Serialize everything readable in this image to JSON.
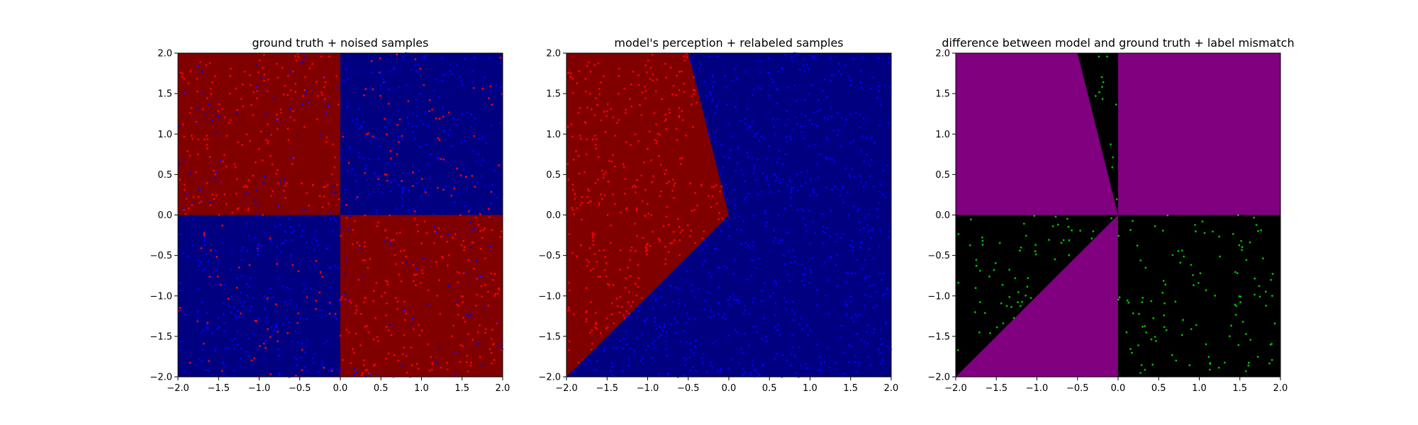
{
  "chart_data": [
    {
      "type": "scatter",
      "title": "ground truth + noised samples",
      "xlim": [
        -2.0,
        2.0
      ],
      "ylim": [
        -2.0,
        2.0
      ],
      "xticks": [
        "−2.0",
        "−1.5",
        "−1.0",
        "−0.5",
        "0.0",
        "0.5",
        "1.0",
        "1.5",
        "2.0"
      ],
      "yticks": [
        "−2.0",
        "−1.5",
        "−1.0",
        "−0.5",
        "0.0",
        "0.5",
        "1.0",
        "1.5",
        "2.0"
      ],
      "background_regions": [
        {
          "region": "x<0, y>0",
          "color": "#800000"
        },
        {
          "region": "x>0, y>0",
          "color": "#000080"
        },
        {
          "region": "x<0, y<0",
          "color": "#000080"
        },
        {
          "region": "x>0, y<0",
          "color": "#800000"
        }
      ],
      "samples": "uniform random points in [-2,2]x[-2,2], colored red or blue; ~25% disagree with their region (label noise)",
      "sample_colors": [
        "#ff0000",
        "#0000ff"
      ]
    },
    {
      "type": "scatter",
      "title": "model's perception + relabeled samples",
      "xlim": [
        -2.0,
        2.0
      ],
      "ylim": [
        -2.0,
        2.0
      ],
      "xticks": [
        "−2.0",
        "−1.5",
        "−1.0",
        "−0.5",
        "0.0",
        "0.5",
        "1.0",
        "1.5",
        "2.0"
      ],
      "yticks": [
        "−2.0",
        "−1.5",
        "−1.0",
        "−0.5",
        "0.0",
        "0.5",
        "1.0",
        "1.5",
        "2.0"
      ],
      "decision_boundary": [
        [
          -0.5,
          2.0
        ],
        [
          0.0,
          0.0
        ],
        [
          -2.0,
          -2.0
        ]
      ],
      "background_regions": [
        {
          "region": "wedge left of boundary",
          "color": "#800000"
        },
        {
          "region": "remaining area",
          "color": "#000080"
        }
      ],
      "samples": "points colored by model prediction: red inside the red wedge, blue elsewhere",
      "sample_colors": [
        "#ff0000",
        "#0000ff"
      ]
    },
    {
      "type": "scatter",
      "title": "difference between model and ground truth + label mismatch",
      "xlim": [
        -2.0,
        2.0
      ],
      "ylim": [
        -2.0,
        2.0
      ],
      "xticks": [
        "−2.0",
        "−1.5",
        "−1.0",
        "−0.5",
        "0.0",
        "0.5",
        "1.0",
        "1.5",
        "2.0"
      ],
      "yticks": [
        "−2.0",
        "−1.5",
        "−1.0",
        "−0.5",
        "0.0",
        "0.5",
        "1.0",
        "1.5",
        "2.0"
      ],
      "background_regions": [
        {
          "region": "model disagrees with ground truth",
          "color": "#800080"
        },
        {
          "region": "model agrees with ground truth",
          "color": "#000000"
        }
      ],
      "samples": "green points where the relabeled sample differs from the noised label",
      "sample_colors": [
        "#00c000"
      ]
    }
  ],
  "colors": {
    "dark_red": "#800000",
    "dark_blue": "#000080",
    "purple": "#800080",
    "black": "#000000",
    "red": "#ff0000",
    "blue": "#0000ff",
    "green": "#00c000"
  }
}
